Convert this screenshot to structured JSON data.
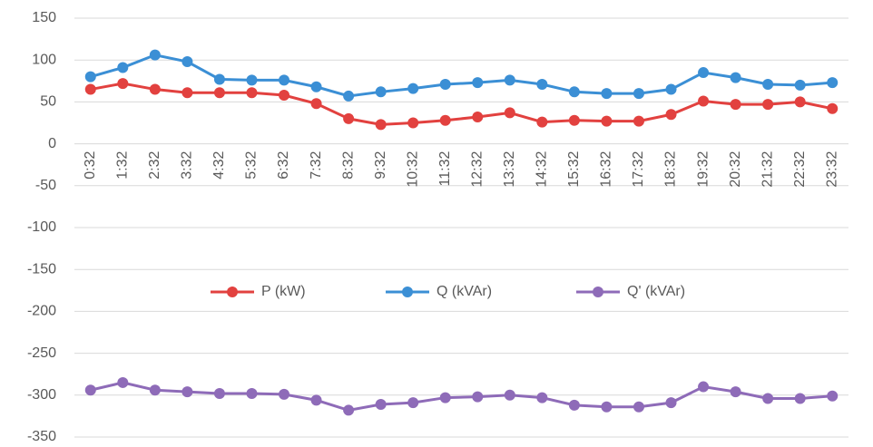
{
  "chart_data": {
    "type": "line",
    "categories": [
      "0:32",
      "1:32",
      "2:32",
      "3:32",
      "4:32",
      "5:32",
      "6:32",
      "7:32",
      "8:32",
      "9:32",
      "10:32",
      "11:32",
      "12:32",
      "13:32",
      "14:32",
      "15:32",
      "16:32",
      "17:32",
      "18:32",
      "19:32",
      "20:32",
      "21:32",
      "22:32",
      "23:32"
    ],
    "series": [
      {
        "name": "P (kW)",
        "color": "#e2413f",
        "values": [
          65,
          72,
          65,
          61,
          61,
          61,
          58,
          48,
          30,
          23,
          25,
          28,
          32,
          37,
          26,
          28,
          27,
          27,
          35,
          51,
          47,
          47,
          50,
          42
        ]
      },
      {
        "name": "Q (kVAr)",
        "color": "#3b8fd5",
        "values": [
          80,
          91,
          106,
          98,
          77,
          76,
          76,
          68,
          57,
          62,
          66,
          71,
          73,
          76,
          71,
          62,
          60,
          60,
          65,
          85,
          79,
          71,
          70,
          73
        ]
      },
      {
        "name": "Q' (kVAr)",
        "color": "#8e6bb8",
        "values": [
          -294,
          -285,
          -294,
          -296,
          -298,
          -298,
          -299,
          -306,
          -318,
          -311,
          -309,
          -303,
          -302,
          -300,
          -303,
          -312,
          -314,
          -314,
          -309,
          -290,
          -296,
          -304,
          -304,
          -301
        ]
      }
    ],
    "ylim": [
      -350,
      150
    ],
    "yticks": [
      -350,
      -300,
      -250,
      -200,
      -150,
      -100,
      -50,
      0,
      50,
      100,
      150
    ],
    "grid": true,
    "legend": "center"
  }
}
